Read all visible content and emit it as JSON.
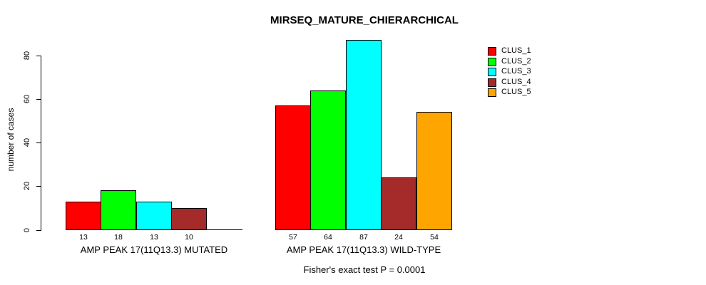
{
  "chart": {
    "title": "MIRSEQ_MATURE_CHIERARCHICAL",
    "ylabel": "number of cases",
    "subtitle": "Fisher's exact test P = 0.0001"
  },
  "chart_data": {
    "type": "bar",
    "title": "MIRSEQ_MATURE_CHIERARCHICAL",
    "ylabel": "number of cases",
    "xlabel": "",
    "annotation": "Fisher's exact test P = 0.0001",
    "ylim": [
      0,
      87
    ],
    "yticks": [
      0,
      20,
      40,
      60,
      80
    ],
    "grid": false,
    "legend_position": "top-right",
    "categories": [
      "AMP PEAK 17(11Q13.3) MUTATED",
      "AMP PEAK 17(11Q13.3) WILD-TYPE"
    ],
    "series": [
      {
        "name": "CLUS_1",
        "color": "#ff0000",
        "values": [
          13,
          57
        ]
      },
      {
        "name": "CLUS_2",
        "color": "#00ff00",
        "values": [
          18,
          64
        ]
      },
      {
        "name": "CLUS_3",
        "color": "#00ffff",
        "values": [
          13,
          87
        ]
      },
      {
        "name": "CLUS_4",
        "color": "#a52a2a",
        "values": [
          10,
          24
        ]
      },
      {
        "name": "CLUS_5",
        "color": "#ffa500",
        "values": [
          0,
          54
        ]
      }
    ],
    "bar_value_labels": [
      [
        "13",
        "18",
        "13",
        "10",
        ""
      ],
      [
        "57",
        "64",
        "87",
        "24",
        "54"
      ]
    ]
  }
}
